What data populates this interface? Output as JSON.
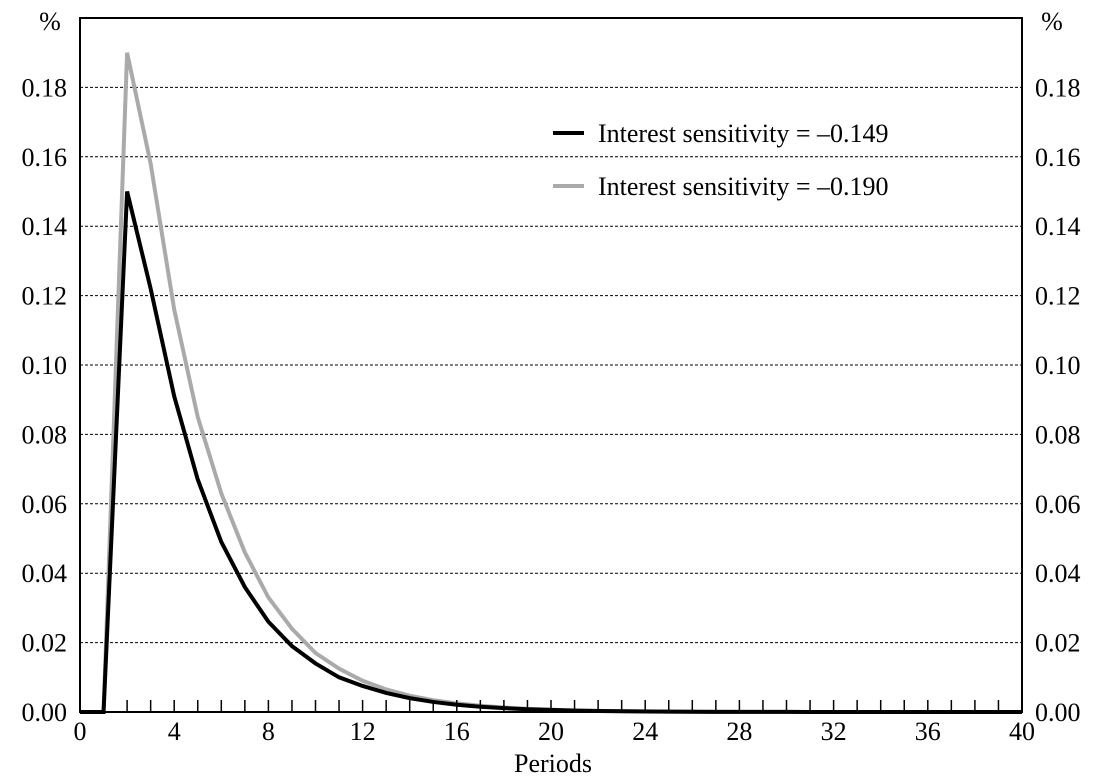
{
  "chart_data": {
    "type": "line",
    "title": "",
    "xlabel": "Periods",
    "ylabel_left": "%",
    "ylabel_right": "%",
    "xlim": [
      0,
      40
    ],
    "ylim": [
      0,
      0.2
    ],
    "x_ticks": [
      0,
      4,
      8,
      12,
      16,
      20,
      24,
      28,
      32,
      36,
      40
    ],
    "x_tick_labels": [
      "0",
      "4",
      "8",
      "12",
      "16",
      "20",
      "24",
      "28",
      "32",
      "36",
      "40"
    ],
    "y_ticks": [
      0,
      0.02,
      0.04,
      0.06,
      0.08,
      0.1,
      0.12,
      0.14,
      0.16,
      0.18
    ],
    "y_tick_labels": [
      "0.00",
      "0.02",
      "0.04",
      "0.06",
      "0.08",
      "0.10",
      "0.12",
      "0.14",
      "0.16",
      "0.18"
    ],
    "grid": "horizontal dashed",
    "legend_position": "top-right",
    "x": [
      0,
      1,
      2,
      3,
      4,
      5,
      6,
      7,
      8,
      9,
      10,
      11,
      12,
      13,
      14,
      15,
      16,
      17,
      18,
      19,
      20,
      21,
      22,
      23,
      24,
      25,
      26,
      27,
      28,
      29,
      30,
      31,
      32,
      33,
      34,
      35,
      36,
      37,
      38,
      39,
      40
    ],
    "series": [
      {
        "name": "Interest sensitivity = –0.149",
        "color": "#000000",
        "values": [
          0,
          0,
          0.15,
          0.122,
          0.091,
          0.067,
          0.049,
          0.036,
          0.026,
          0.019,
          0.014,
          0.01,
          0.0075,
          0.0055,
          0.004,
          0.0029,
          0.0021,
          0.0015,
          0.0011,
          0.0008,
          0.0006,
          0.0004,
          0.0003,
          0.0002,
          0.00015,
          0.0001,
          7e-05,
          5e-05,
          4e-05,
          3e-05,
          2e-05,
          1e-05,
          1e-05,
          0,
          0,
          0,
          0,
          0,
          0,
          0,
          0
        ]
      },
      {
        "name": "Interest sensitivity = –0.190",
        "color": "#aaaaaa",
        "values": [
          0,
          0,
          0.19,
          0.158,
          0.116,
          0.085,
          0.063,
          0.046,
          0.033,
          0.024,
          0.017,
          0.0125,
          0.009,
          0.0065,
          0.0047,
          0.0034,
          0.0025,
          0.0018,
          0.0013,
          0.0009,
          0.00065,
          0.00047,
          0.00034,
          0.00024,
          0.00017,
          0.00012,
          9e-05,
          6e-05,
          4e-05,
          3e-05,
          2e-05,
          1e-05,
          1e-05,
          0,
          0,
          0,
          0,
          0,
          0,
          0,
          0
        ]
      }
    ]
  }
}
